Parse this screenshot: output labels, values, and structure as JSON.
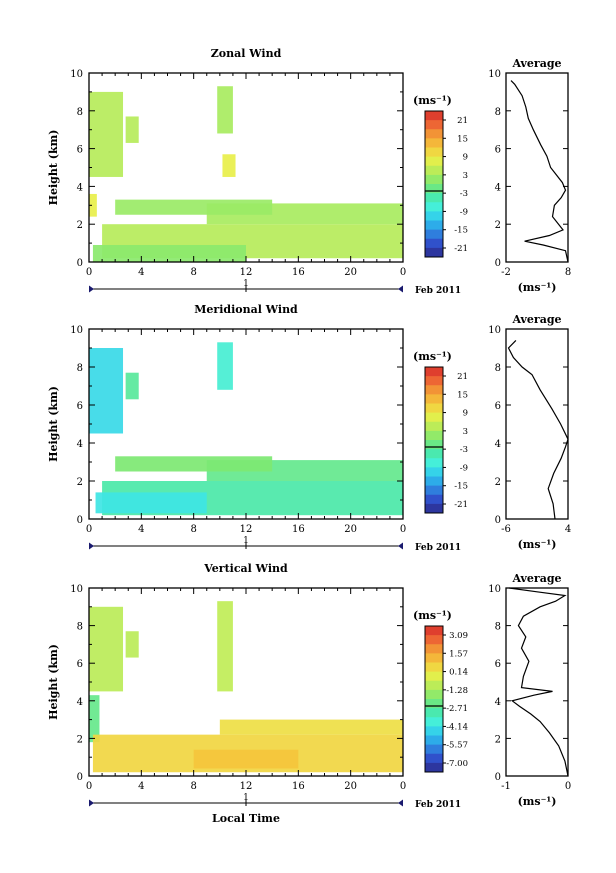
{
  "chart_data": [
    {
      "type": "heatmap",
      "title": "Zonal Wind",
      "ylabel": "Height (km)",
      "xlabel": "",
      "x_ticks": [
        "0",
        "4",
        "8",
        "12",
        "16",
        "20",
        "0"
      ],
      "y_ticks": [
        "0",
        "2",
        "4",
        "6",
        "8",
        "10"
      ],
      "xlim": [
        0,
        24
      ],
      "ylim": [
        0,
        10
      ],
      "day_marker": "1",
      "date_label": "Feb 2011",
      "colorbar": {
        "label": "(ms⁻¹)",
        "ticks": [
          "21",
          "15",
          "9",
          "3",
          "-3",
          "-9",
          "-15",
          "-21"
        ],
        "range": [
          -24,
          24
        ]
      },
      "patches": [
        {
          "x0": 0,
          "x1": 2.6,
          "y0": 4.5,
          "y1": 9.0,
          "value": 4
        },
        {
          "x0": 0,
          "x1": 0.6,
          "y0": 2.4,
          "y1": 3.6,
          "value": 8
        },
        {
          "x0": 2.8,
          "x1": 3.8,
          "y0": 6.3,
          "y1": 7.7,
          "value": 4
        },
        {
          "x0": 9.8,
          "x1": 11.0,
          "y0": 6.8,
          "y1": 9.3,
          "value": 3
        },
        {
          "x0": 10.2,
          "x1": 11.2,
          "y0": 4.5,
          "y1": 5.7,
          "value": 8
        },
        {
          "x0": 1.0,
          "x1": 24,
          "y0": 0.2,
          "y1": 2.0,
          "value": 4
        },
        {
          "x0": 9,
          "x1": 24,
          "y0": 2.0,
          "y1": 3.1,
          "value": 3
        },
        {
          "x0": 2,
          "x1": 14,
          "y0": 2.5,
          "y1": 3.3,
          "value": 2
        },
        {
          "x0": 0.3,
          "x1": 12,
          "y0": 0.0,
          "y1": 0.9,
          "value": 1
        }
      ]
    },
    {
      "type": "heatmap",
      "title": "Meridional Wind",
      "ylabel": "Height (km)",
      "xlabel": "",
      "x_ticks": [
        "0",
        "4",
        "8",
        "12",
        "16",
        "20",
        "0"
      ],
      "y_ticks": [
        "0",
        "2",
        "4",
        "6",
        "8",
        "10"
      ],
      "xlim": [
        0,
        24
      ],
      "ylim": [
        0,
        10
      ],
      "day_marker": "1",
      "date_label": "Feb 2011",
      "colorbar": {
        "label": "(ms⁻¹)",
        "ticks": [
          "21",
          "15",
          "9",
          "3",
          "-3",
          "-9",
          "-15",
          "-21"
        ],
        "range": [
          -24,
          24
        ]
      },
      "patches": [
        {
          "x0": 0,
          "x1": 2.6,
          "y0": 4.5,
          "y1": 9.0,
          "value": -10
        },
        {
          "x0": 2.8,
          "x1": 3.8,
          "y0": 6.3,
          "y1": 7.7,
          "value": -3
        },
        {
          "x0": 9.8,
          "x1": 11.0,
          "y0": 6.8,
          "y1": 9.3,
          "value": -7
        },
        {
          "x0": 1.0,
          "x1": 24,
          "y0": 0.2,
          "y1": 2.0,
          "value": -4
        },
        {
          "x0": 9,
          "x1": 24,
          "y0": 2.0,
          "y1": 3.1,
          "value": -2
        },
        {
          "x0": 0.5,
          "x1": 9,
          "y0": 0.3,
          "y1": 1.4,
          "value": -9
        },
        {
          "x0": 2,
          "x1": 14,
          "y0": 2.5,
          "y1": 3.3,
          "value": 0
        }
      ]
    },
    {
      "type": "heatmap",
      "title": "Vertical Wind",
      "ylabel": "Height (km)",
      "xlabel": "Local Time",
      "x_ticks": [
        "0",
        "4",
        "8",
        "12",
        "16",
        "20",
        "0"
      ],
      "y_ticks": [
        "0",
        "2",
        "4",
        "6",
        "8",
        "10"
      ],
      "xlim": [
        0,
        24
      ],
      "ylim": [
        0,
        10
      ],
      "day_marker": "1",
      "date_label": "Feb 2011",
      "colorbar": {
        "label": "(ms⁻¹)",
        "ticks": [
          "3.09",
          "1.57",
          "0.14",
          "-1.28",
          "-2.71",
          "-4.14",
          "-5.57",
          "-7.00"
        ],
        "range": [
          -7.7,
          3.8
        ]
      },
      "patches": [
        {
          "x0": 0,
          "x1": 2.6,
          "y0": 4.5,
          "y1": 9.0,
          "value": -0.9
        },
        {
          "x0": 0,
          "x1": 0.8,
          "y0": 1.8,
          "y1": 4.3,
          "value": -2.4
        },
        {
          "x0": 2.8,
          "x1": 3.8,
          "y0": 6.3,
          "y1": 7.7,
          "value": -0.9
        },
        {
          "x0": 9.8,
          "x1": 11.0,
          "y0": 4.5,
          "y1": 9.3,
          "value": -0.8
        },
        {
          "x0": 0.3,
          "x1": 24,
          "y0": 0.2,
          "y1": 2.2,
          "value": 0.6
        },
        {
          "x0": 10,
          "x1": 24,
          "y0": 2.2,
          "y1": 3.0,
          "value": 0.4
        },
        {
          "x0": 8,
          "x1": 16,
          "y0": 0.4,
          "y1": 1.4,
          "value": 1.0
        }
      ]
    }
  ],
  "profiles": [
    {
      "title": "Average",
      "xlabel": "(ms⁻¹)",
      "x_ticks": [
        "-2",
        "8"
      ],
      "y_ticks": [
        "0",
        "2",
        "4",
        "6",
        "8",
        "10"
      ],
      "xlim": [
        -2,
        8
      ],
      "ylim": [
        0,
        10
      ],
      "points": [
        [
          8.0,
          0.0
        ],
        [
          7.6,
          0.6
        ],
        [
          4.0,
          0.9
        ],
        [
          1.0,
          1.1
        ],
        [
          5.0,
          1.4
        ],
        [
          7.2,
          1.7
        ],
        [
          5.5,
          2.4
        ],
        [
          5.8,
          3.0
        ],
        [
          6.9,
          3.4
        ],
        [
          7.6,
          3.8
        ],
        [
          7.1,
          4.2
        ],
        [
          5.2,
          5.0
        ],
        [
          4.6,
          5.6
        ],
        [
          3.6,
          6.2
        ],
        [
          2.4,
          7.0
        ],
        [
          1.6,
          7.6
        ],
        [
          1.2,
          8.2
        ],
        [
          0.6,
          8.8
        ],
        [
          -0.6,
          9.4
        ],
        [
          -1.2,
          9.6
        ]
      ]
    },
    {
      "title": "Average",
      "xlabel": "(ms⁻¹)",
      "x_ticks": [
        "-6",
        "4"
      ],
      "y_ticks": [
        "0",
        "2",
        "4",
        "6",
        "8",
        "10"
      ],
      "xlim": [
        -6,
        4
      ],
      "ylim": [
        0,
        10
      ],
      "points": [
        [
          1.9,
          0.0
        ],
        [
          1.6,
          0.8
        ],
        [
          0.8,
          1.6
        ],
        [
          1.7,
          2.4
        ],
        [
          2.9,
          3.2
        ],
        [
          3.6,
          3.8
        ],
        [
          4.0,
          4.2
        ],
        [
          2.8,
          5.0
        ],
        [
          1.4,
          5.8
        ],
        [
          -0.5,
          6.8
        ],
        [
          -1.8,
          7.6
        ],
        [
          -3.4,
          8.0
        ],
        [
          -4.8,
          8.5
        ],
        [
          -5.6,
          9.0
        ],
        [
          -4.4,
          9.4
        ]
      ]
    },
    {
      "title": "Average",
      "xlabel": "(ms⁻¹)",
      "x_ticks": [
        "-1",
        "0"
      ],
      "y_ticks": [
        "0",
        "2",
        "4",
        "6",
        "8",
        "10"
      ],
      "xlim": [
        -1,
        0
      ],
      "ylim": [
        0,
        10
      ],
      "points": [
        [
          0.0,
          0.0
        ],
        [
          -0.05,
          0.8
        ],
        [
          -0.15,
          1.6
        ],
        [
          -0.3,
          2.3
        ],
        [
          -0.45,
          2.9
        ],
        [
          -0.6,
          3.3
        ],
        [
          -0.78,
          3.7
        ],
        [
          -0.9,
          4.0
        ],
        [
          -0.55,
          4.3
        ],
        [
          -0.25,
          4.5
        ],
        [
          -0.75,
          4.7
        ],
        [
          -0.72,
          5.3
        ],
        [
          -0.63,
          6.1
        ],
        [
          -0.75,
          6.8
        ],
        [
          -0.68,
          7.4
        ],
        [
          -0.8,
          8.0
        ],
        [
          -0.72,
          8.5
        ],
        [
          -0.45,
          9.0
        ],
        [
          -0.2,
          9.3
        ],
        [
          -0.05,
          9.6
        ],
        [
          -0.5,
          9.8
        ],
        [
          -0.95,
          10.0
        ]
      ]
    }
  ]
}
